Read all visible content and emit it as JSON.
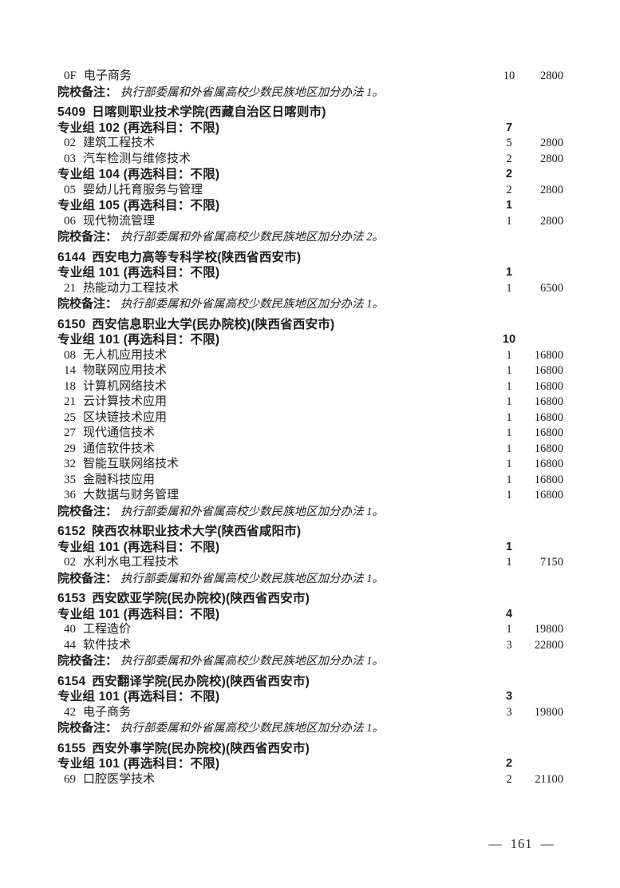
{
  "page": {
    "footer": {
      "left_dash": "—",
      "number": "161",
      "right_dash": "—"
    }
  },
  "rows": [
    {
      "type": "program",
      "code": "0F",
      "name": "电子商务",
      "count": "10",
      "fee": "2800"
    },
    {
      "type": "note",
      "label": "院校备注：",
      "text": "执行部委属和外省属高校少数民族地区加分办法 1。"
    },
    {
      "type": "school",
      "code": "5409",
      "name": "日喀则职业技术学院(西藏自治区日喀则市)"
    },
    {
      "type": "group",
      "label": "专业组 102 (再选科目：不限)",
      "count": "7"
    },
    {
      "type": "program",
      "code": "02",
      "name": "建筑工程技术",
      "count": "5",
      "fee": "2800"
    },
    {
      "type": "program",
      "code": "03",
      "name": "汽车检测与维修技术",
      "count": "2",
      "fee": "2800"
    },
    {
      "type": "group",
      "label": "专业组 104 (再选科目：不限)",
      "count": "2"
    },
    {
      "type": "program",
      "code": "05",
      "name": "婴幼儿托育服务与管理",
      "count": "2",
      "fee": "2800"
    },
    {
      "type": "group",
      "label": "专业组 105 (再选科目：不限)",
      "count": "1"
    },
    {
      "type": "program",
      "code": "06",
      "name": "现代物流管理",
      "count": "1",
      "fee": "2800"
    },
    {
      "type": "note",
      "label": "院校备注：",
      "text": "执行部委属和外省属高校少数民族地区加分办法 2。"
    },
    {
      "type": "school",
      "code": "6144",
      "name": "西安电力高等专科学校(陕西省西安市)"
    },
    {
      "type": "group",
      "label": "专业组 101 (再选科目：不限)",
      "count": "1"
    },
    {
      "type": "program",
      "code": "21",
      "name": "热能动力工程技术",
      "count": "1",
      "fee": "6500"
    },
    {
      "type": "note",
      "label": "院校备注：",
      "text": "执行部委属和外省属高校少数民族地区加分办法 1。"
    },
    {
      "type": "school",
      "code": "6150",
      "name": "西安信息职业大学(民办院校)(陕西省西安市)"
    },
    {
      "type": "group",
      "label": "专业组 101 (再选科目：不限)",
      "count": "10"
    },
    {
      "type": "program",
      "code": "08",
      "name": "无人机应用技术",
      "count": "1",
      "fee": "16800"
    },
    {
      "type": "program",
      "code": "14",
      "name": "物联网应用技术",
      "count": "1",
      "fee": "16800"
    },
    {
      "type": "program",
      "code": "18",
      "name": "计算机网络技术",
      "count": "1",
      "fee": "16800"
    },
    {
      "type": "program",
      "code": "21",
      "name": "云计算技术应用",
      "count": "1",
      "fee": "16800"
    },
    {
      "type": "program",
      "code": "25",
      "name": "区块链技术应用",
      "count": "1",
      "fee": "16800"
    },
    {
      "type": "program",
      "code": "27",
      "name": "现代通信技术",
      "count": "1",
      "fee": "16800"
    },
    {
      "type": "program",
      "code": "29",
      "name": "通信软件技术",
      "count": "1",
      "fee": "16800"
    },
    {
      "type": "program",
      "code": "32",
      "name": "智能互联网络技术",
      "count": "1",
      "fee": "16800"
    },
    {
      "type": "program",
      "code": "35",
      "name": "金融科技应用",
      "count": "1",
      "fee": "16800"
    },
    {
      "type": "program",
      "code": "36",
      "name": "大数据与财务管理",
      "count": "1",
      "fee": "16800"
    },
    {
      "type": "note",
      "label": "院校备注：",
      "text": "执行部委属和外省属高校少数民族地区加分办法 1。"
    },
    {
      "type": "school",
      "code": "6152",
      "name": "陕西农林职业技术大学(陕西省咸阳市)"
    },
    {
      "type": "group",
      "label": "专业组 101 (再选科目：不限)",
      "count": "1"
    },
    {
      "type": "program",
      "code": "02",
      "name": "水利水电工程技术",
      "count": "1",
      "fee": "7150"
    },
    {
      "type": "note",
      "label": "院校备注：",
      "text": "执行部委属和外省属高校少数民族地区加分办法 1。"
    },
    {
      "type": "school",
      "code": "6153",
      "name": "西安欧亚学院(民办院校)(陕西省西安市)"
    },
    {
      "type": "group",
      "label": "专业组 101 (再选科目：不限)",
      "count": "4"
    },
    {
      "type": "program",
      "code": "40",
      "name": "工程造价",
      "count": "1",
      "fee": "19800"
    },
    {
      "type": "program",
      "code": "44",
      "name": "软件技术",
      "count": "3",
      "fee": "22800"
    },
    {
      "type": "note",
      "label": "院校备注：",
      "text": "执行部委属和外省属高校少数民族地区加分办法 1。"
    },
    {
      "type": "school",
      "code": "6154",
      "name": "西安翻译学院(民办院校)(陕西省西安市)"
    },
    {
      "type": "group",
      "label": "专业组 101 (再选科目：不限)",
      "count": "3"
    },
    {
      "type": "program",
      "code": "42",
      "name": "电子商务",
      "count": "3",
      "fee": "19800"
    },
    {
      "type": "note",
      "label": "院校备注：",
      "text": "执行部委属和外省属高校少数民族地区加分办法 1。"
    },
    {
      "type": "school",
      "code": "6155",
      "name": "西安外事学院(民办院校)(陕西省西安市)"
    },
    {
      "type": "group",
      "label": "专业组 101 (再选科目：不限)",
      "count": "2"
    },
    {
      "type": "program",
      "code": "69",
      "name": "口腔医学技术",
      "count": "2",
      "fee": "21100"
    }
  ]
}
